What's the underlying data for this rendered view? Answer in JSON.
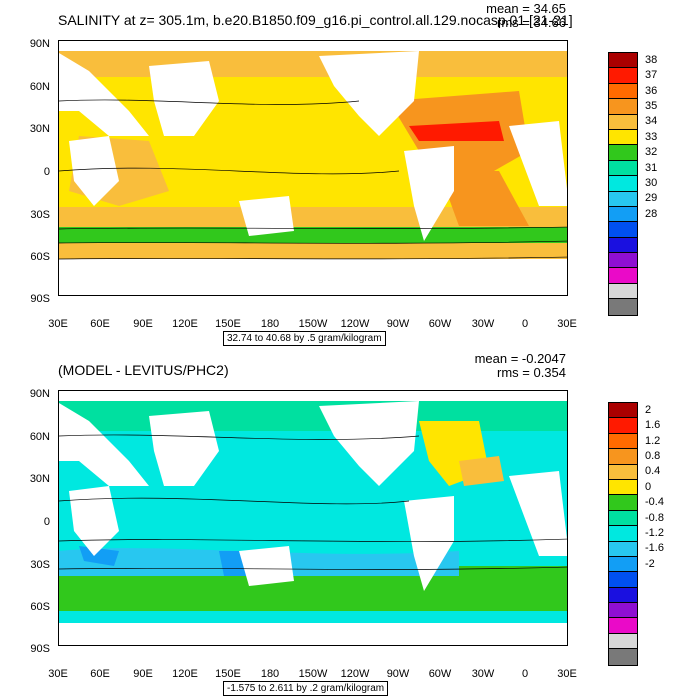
{
  "top": {
    "title": "SALINITY at z= 305.1m, b.e20.B1850.f09_g16.pi_control.all.129.nocasp.01 [21-21]",
    "stat_mean": "mean = 34.65",
    "stat_rms": "rms = 34.66",
    "info": "32.74 to 40.68 by .5 gram/kilogram",
    "colorbar": {
      "labels": [
        "38",
        "37",
        "36",
        "35",
        "34",
        "33",
        "32",
        "31",
        "30",
        "29",
        "28"
      ],
      "colors": [
        "#aa0000",
        "#ff1a00",
        "#ff6a00",
        "#f7951e",
        "#f9be3c",
        "#ffe500",
        "#31c81c",
        "#00e0a0",
        "#00e8e0",
        "#28c7f0",
        "#129ef5",
        "#0050f0",
        "#1a10e0",
        "#8e0fd2",
        "#ea0ac8",
        "#d8d8d8",
        "#797979"
      ]
    }
  },
  "bottom": {
    "title": "(MODEL - LEVITUS/PHC2)",
    "stat_mean": "mean = -0.2047",
    "stat_rms": "rms = 0.354",
    "info": "-1.575 to 2.611 by .2 gram/kilogram",
    "colorbar": {
      "labels": [
        "2",
        "1.6",
        "1.2",
        "0.8",
        "0.4",
        "0",
        "-0.4",
        "-0.8",
        "-1.2",
        "-1.6",
        "-2"
      ],
      "colors": [
        "#aa0000",
        "#ff1a00",
        "#ff6a00",
        "#f7951e",
        "#f9be3c",
        "#ffe500",
        "#31c81c",
        "#00e0a0",
        "#00e8e0",
        "#28c7f0",
        "#129ef5",
        "#0050f0",
        "#1a10e0",
        "#8e0fd2",
        "#ea0ac8",
        "#d8d8d8",
        "#797979"
      ]
    }
  },
  "lat_labels": [
    "90N",
    "60N",
    "30N",
    "0",
    "30S",
    "60S",
    "90S"
  ],
  "lon_labels": [
    "30E",
    "60E",
    "90E",
    "120E",
    "150E",
    "180",
    "150W",
    "120W",
    "90W",
    "60W",
    "30W",
    "0",
    "30E"
  ]
}
